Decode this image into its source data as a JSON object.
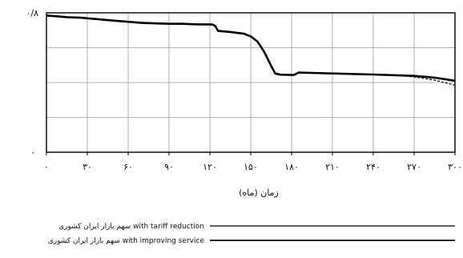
{
  "chart_data": {
    "type": "line",
    "title": "",
    "xlabel": "(ماه) زمان",
    "ylabel": "",
    "x_ticks": [
      0,
      30,
      60,
      90,
      120,
      150,
      180,
      210,
      240,
      270,
      300
    ],
    "x_tick_labels": [
      "۰",
      "۳۰",
      "۶۰",
      "۹۰",
      "۱۲۰",
      "۱۵۰",
      "۱۸۰",
      "۲۱۰",
      "۲۴۰",
      "۲۷۰",
      "۳۰۰"
    ],
    "y_tick_labels": [
      "۰/۸",
      "۰"
    ],
    "xlim": [
      0,
      300
    ],
    "ylim": [
      0,
      0.8
    ],
    "grid": true,
    "legend_position": "bottom",
    "series": [
      {
        "name": "سهم بازار ایران کشوری with tariff reduction",
        "style": "solid",
        "color": "#000000",
        "x": [
          0,
          15,
          25,
          35,
          50,
          70,
          90,
          100,
          105,
          112,
          122,
          124,
          126,
          135,
          145,
          150,
          155,
          160,
          165,
          168,
          172,
          180,
          182,
          185,
          195,
          210,
          240,
          270,
          285,
          300
        ],
        "y": [
          0.785,
          0.775,
          0.772,
          0.765,
          0.755,
          0.742,
          0.737,
          0.737,
          0.735,
          0.734,
          0.733,
          0.724,
          0.696,
          0.69,
          0.68,
          0.665,
          0.635,
          0.575,
          0.495,
          0.452,
          0.445,
          0.443,
          0.444,
          0.457,
          0.455,
          0.452,
          0.446,
          0.438,
          0.428,
          0.41
        ]
      },
      {
        "name": "سهم بازار ایران کشوری with improving service",
        "style": "dashed",
        "color": "#000000",
        "x": [
          255,
          270,
          285,
          300
        ],
        "y": [
          0.442,
          0.432,
          0.414,
          0.385
        ]
      }
    ]
  }
}
